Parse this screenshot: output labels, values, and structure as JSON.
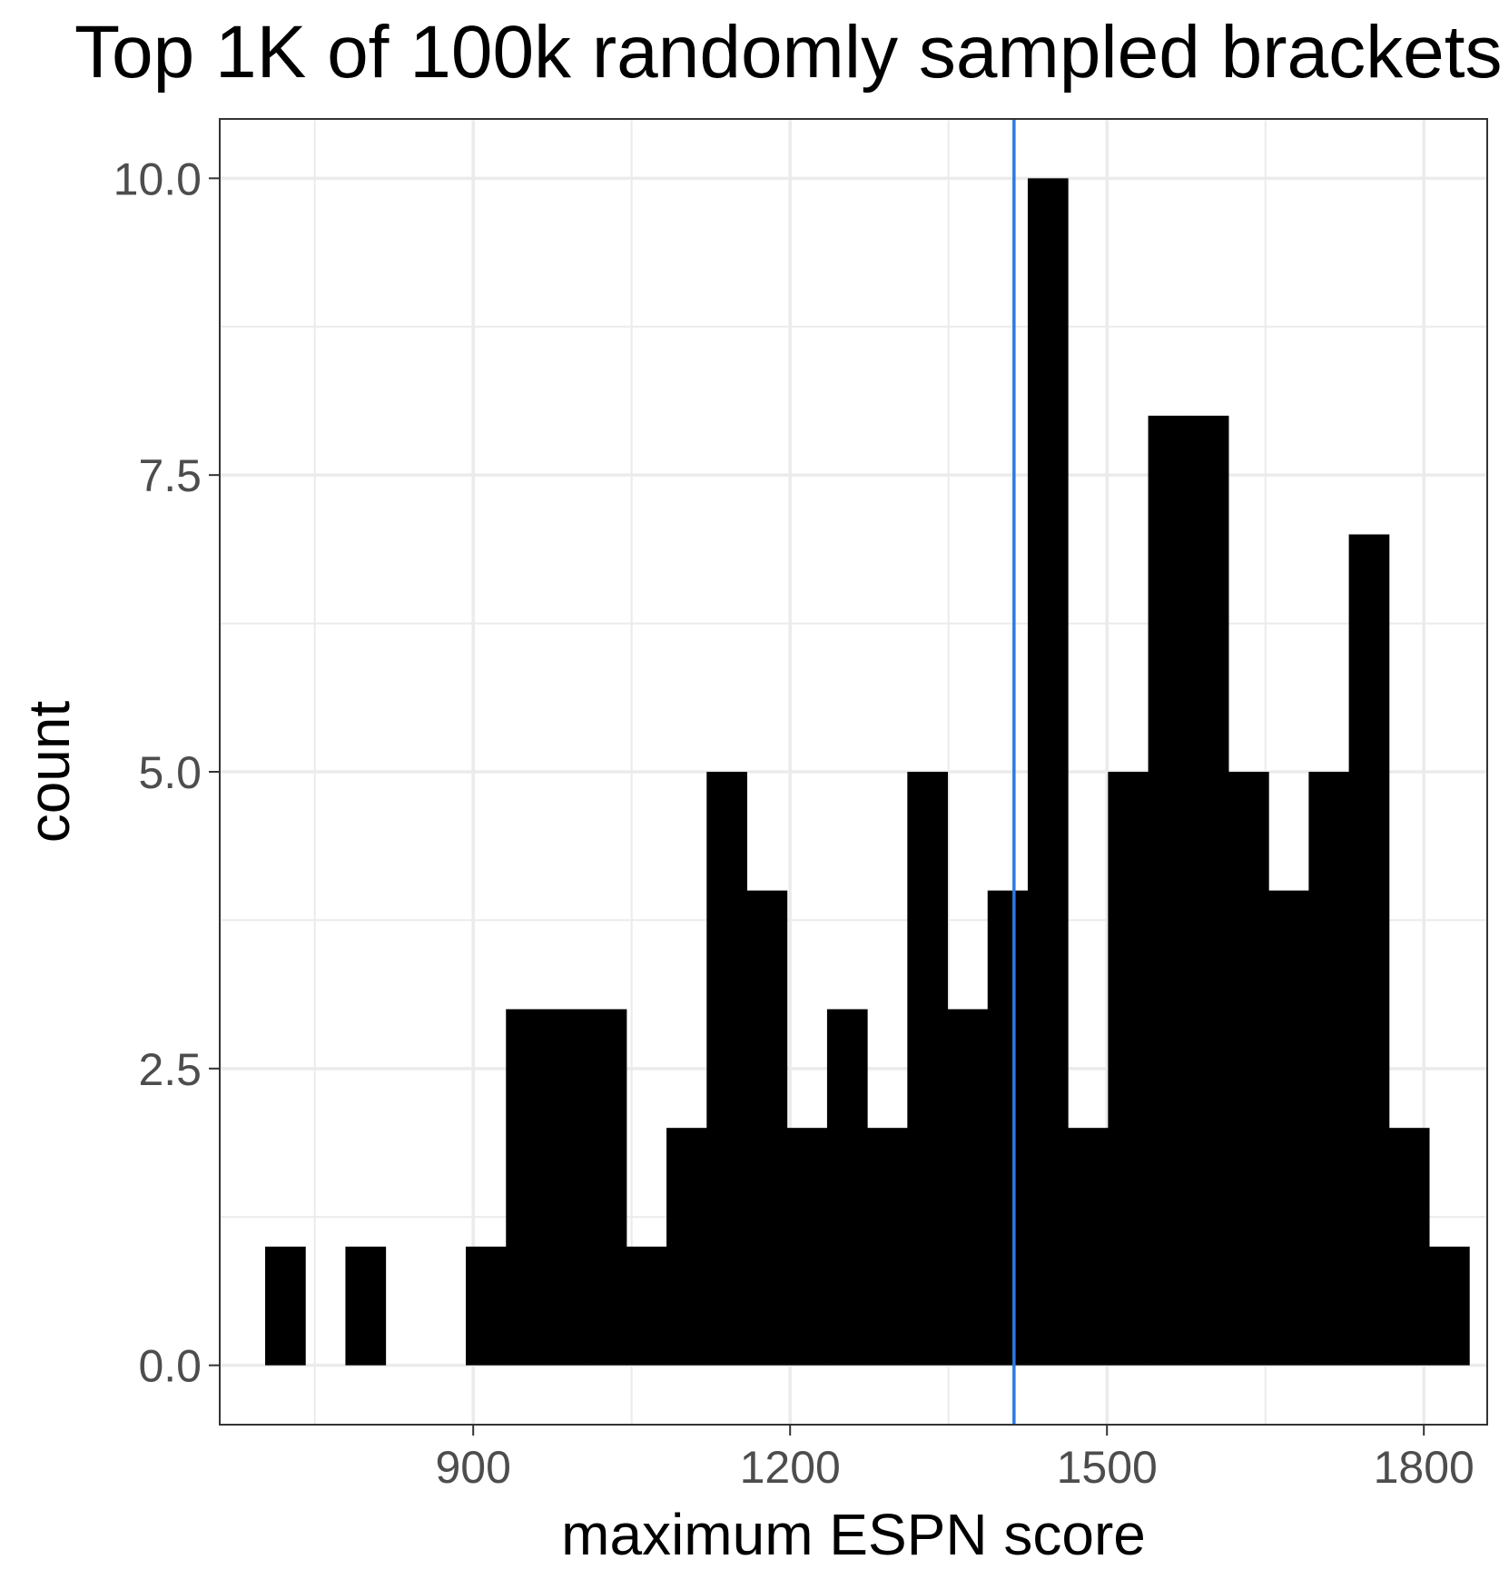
{
  "chart_data": {
    "type": "histogram",
    "title": "Top 1K of 100k randomly sampled brackets",
    "xlabel": "maximum ESPN score",
    "ylabel": "count",
    "xlim": [
      660,
      1860
    ],
    "ylim": [
      -0.5,
      10.5
    ],
    "x_ticks": [
      900,
      1200,
      1500,
      1800
    ],
    "x_tick_labels": [
      "900",
      "1200",
      "1500",
      "1800"
    ],
    "y_ticks": [
      0,
      2.5,
      5,
      7.5,
      10
    ],
    "y_tick_labels": [
      "0.0",
      "2.5",
      "5.0",
      "7.5",
      "10.0"
    ],
    "grid": true,
    "bin_width": 38,
    "bins": [
      {
        "x0": 703,
        "x1": 741,
        "count": 1
      },
      {
        "x0": 779,
        "x1": 817,
        "count": 1
      },
      {
        "x0": 893,
        "x1": 931,
        "count": 1
      },
      {
        "x0": 931,
        "x1": 969,
        "count": 3
      },
      {
        "x0": 969,
        "x1": 1007,
        "count": 3
      },
      {
        "x0": 1007,
        "x1": 1045,
        "count": 3
      },
      {
        "x0": 1045,
        "x1": 1083,
        "count": 1
      },
      {
        "x0": 1083,
        "x1": 1121,
        "count": 2
      },
      {
        "x0": 1121,
        "x1": 1159,
        "count": 5
      },
      {
        "x0": 1159,
        "x1": 1197,
        "count": 4
      },
      {
        "x0": 1197,
        "x1": 1235,
        "count": 2
      },
      {
        "x0": 1235,
        "x1": 1273,
        "count": 3
      },
      {
        "x0": 1273,
        "x1": 1311,
        "count": 2
      },
      {
        "x0": 1311,
        "x1": 1349,
        "count": 5
      },
      {
        "x0": 1349,
        "x1": 1387,
        "count": 3
      },
      {
        "x0": 1387,
        "x1": 1425,
        "count": 4
      },
      {
        "x0": 1425,
        "x1": 1463,
        "count": 10
      },
      {
        "x0": 1463,
        "x1": 1501,
        "count": 2
      },
      {
        "x0": 1501,
        "x1": 1539,
        "count": 5
      },
      {
        "x0": 1539,
        "x1": 1577,
        "count": 8
      },
      {
        "x0": 1577,
        "x1": 1615,
        "count": 8
      },
      {
        "x0": 1615,
        "x1": 1653,
        "count": 5
      },
      {
        "x0": 1653,
        "x1": 1691,
        "count": 4
      },
      {
        "x0": 1691,
        "x1": 1729,
        "count": 5
      },
      {
        "x0": 1729,
        "x1": 1767,
        "count": 7
      },
      {
        "x0": 1767,
        "x1": 1805,
        "count": 2
      },
      {
        "x0": 1805,
        "x1": 1843,
        "count": 1
      }
    ],
    "reference_line": {
      "x": 1412,
      "color": "#2b7be4"
    },
    "bar_color": "#000000",
    "grid_color": "#ebebeb",
    "panel_border_color": "#333333"
  }
}
